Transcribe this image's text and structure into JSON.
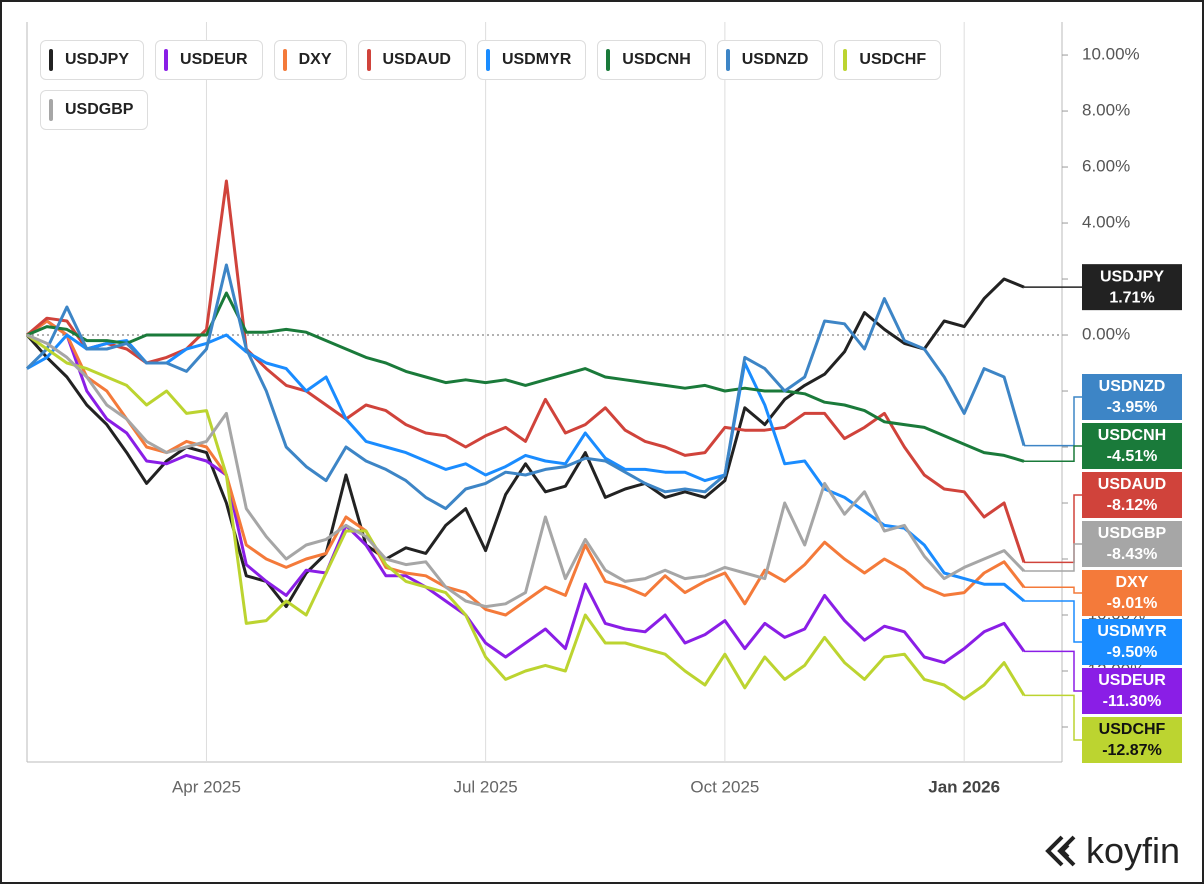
{
  "chart_data": {
    "type": "line",
    "categories": [
      null,
      null,
      null,
      null,
      null,
      null,
      null,
      null,
      null,
      "Apr 2025",
      null,
      null,
      null,
      null,
      null,
      null,
      null,
      null,
      null,
      null,
      null,
      null,
      null,
      "Jul 2025",
      null,
      null,
      null,
      null,
      null,
      null,
      null,
      null,
      null,
      null,
      null,
      "Oct 2025",
      null,
      null,
      null,
      null,
      null,
      null,
      null,
      null,
      null,
      null,
      null,
      "Jan 2026",
      null,
      null,
      null
    ],
    "ylim": [
      -15.25,
      11.18
    ],
    "yticks": [
      {
        "value": 10,
        "label": "10.00%"
      },
      {
        "value": 8,
        "label": "8.00%"
      },
      {
        "value": 6,
        "label": "6.00%"
      },
      {
        "value": 4,
        "label": "4.00%"
      },
      {
        "value": 2,
        "label": "2.00%"
      },
      {
        "value": 0,
        "label": "0.00%"
      },
      {
        "value": -2,
        "label": "-2.00%"
      },
      {
        "value": -4,
        "label": "-4.00%"
      },
      {
        "value": -6,
        "label": "-6.00%"
      },
      {
        "value": -8,
        "label": "-8.00%"
      },
      {
        "value": -10,
        "label": "-10.00%"
      },
      {
        "value": -12,
        "label": "-12.00%"
      },
      {
        "value": -14,
        "label": "-14.00%"
      }
    ],
    "zero_line": true,
    "series": [
      {
        "name": "USDJPY",
        "color": "#222222",
        "end_label": "1.71%",
        "values": [
          0,
          -0.8,
          -1.5,
          -2.5,
          -3.2,
          -4.2,
          -5.3,
          -4.5,
          -4.0,
          -4.2,
          -6.0,
          -8.6,
          -8.8,
          -9.7,
          -8.5,
          -7.8,
          -5.0,
          -7.5,
          -8.0,
          -7.6,
          -7.8,
          -6.8,
          -6.2,
          -7.7,
          -5.7,
          -4.6,
          -5.6,
          -5.4,
          -4.2,
          -5.8,
          -5.5,
          -5.3,
          -5.8,
          -5.6,
          -5.8,
          -5.2,
          -2.6,
          -3.2,
          -2.3,
          -1.8,
          -1.4,
          -0.6,
          0.8,
          0.2,
          -0.3,
          -0.5,
          0.5,
          0.3,
          1.3,
          2.0,
          1.71
        ]
      },
      {
        "name": "USDEUR",
        "color": "#8a1ee6",
        "end_label": "-11.30%",
        "values": [
          0,
          0.5,
          0,
          -2.0,
          -3.0,
          -3.5,
          -4.5,
          -4.6,
          -4.3,
          -4.5,
          -5.0,
          -8.2,
          -8.8,
          -9.3,
          -8.4,
          -8.5,
          -6.8,
          -7.5,
          -8.6,
          -8.6,
          -9.0,
          -9.5,
          -10.0,
          -11.0,
          -11.5,
          -11.0,
          -10.5,
          -11.2,
          -8.9,
          -10.3,
          -10.5,
          -10.6,
          -10.0,
          -11.0,
          -10.7,
          -10.2,
          -11.2,
          -10.3,
          -10.8,
          -10.5,
          -9.3,
          -10.2,
          -10.9,
          -10.4,
          -10.6,
          -11.5,
          -11.7,
          -11.2,
          -10.6,
          -10.3,
          -11.3
        ]
      },
      {
        "name": "DXY",
        "color": "#f47a3a",
        "end_label": "-9.01%",
        "values": [
          0,
          0.5,
          0,
          -1.5,
          -2.0,
          -3.0,
          -4.0,
          -4.2,
          -3.8,
          -4.0,
          -5.0,
          -7.5,
          -8.0,
          -8.3,
          -8.0,
          -7.8,
          -6.5,
          -7.0,
          -8.3,
          -8.5,
          -8.6,
          -9.0,
          -9.2,
          -9.8,
          -10.0,
          -9.5,
          -9.0,
          -9.3,
          -7.5,
          -8.8,
          -9.0,
          -9.3,
          -8.6,
          -9.2,
          -8.8,
          -8.5,
          -9.6,
          -8.4,
          -8.8,
          -8.2,
          -7.4,
          -8.0,
          -8.5,
          -8.0,
          -8.4,
          -9.0,
          -9.3,
          -9.2,
          -8.5,
          -8.1,
          -9.01
        ]
      },
      {
        "name": "USDAUD",
        "color": "#d0433b",
        "end_label": "-8.12%",
        "values": [
          0,
          0.6,
          0.5,
          -0.5,
          -0.3,
          -0.5,
          -1.0,
          -0.8,
          -0.5,
          0.2,
          5.5,
          -0.5,
          -1.2,
          -1.8,
          -2.0,
          -2.5,
          -3.0,
          -2.5,
          -2.7,
          -3.2,
          -3.5,
          -3.6,
          -4.0,
          -3.6,
          -3.3,
          -3.8,
          -2.3,
          -3.5,
          -3.2,
          -2.6,
          -3.4,
          -3.8,
          -4.0,
          -4.3,
          -4.2,
          -3.3,
          -3.4,
          -3.4,
          -3.3,
          -2.8,
          -2.8,
          -3.7,
          -3.3,
          -2.8,
          -4.0,
          -5.0,
          -5.5,
          -5.6,
          -6.5,
          -6.0,
          -8.12
        ]
      },
      {
        "name": "USDMYR",
        "color": "#1a8cff",
        "end_label": "-9.50%",
        "values": [
          -1.2,
          -0.8,
          0,
          -0.5,
          -0.3,
          -0.2,
          -1.0,
          -1.0,
          -0.5,
          -0.3,
          0,
          -0.6,
          -1.0,
          -1.2,
          -2.0,
          -1.5,
          -3.0,
          -3.8,
          -4.0,
          -4.2,
          -4.5,
          -4.8,
          -4.6,
          -5.0,
          -4.7,
          -4.3,
          -4.5,
          -4.6,
          -3.5,
          -4.4,
          -4.8,
          -4.8,
          -4.9,
          -4.9,
          -5.2,
          -5.0,
          -1.0,
          -2.5,
          -4.6,
          -4.5,
          -5.5,
          -5.8,
          -6.3,
          -6.8,
          -6.9,
          -7.5,
          -8.5,
          -8.7,
          -8.9,
          -8.9,
          -9.5
        ]
      },
      {
        "name": "USDCNH",
        "color": "#1a7a3a",
        "end_label": "-4.51%",
        "values": [
          0,
          0.3,
          0.2,
          -0.2,
          -0.2,
          -0.3,
          0,
          0,
          0,
          0,
          1.5,
          0.1,
          0.1,
          0.2,
          0.1,
          -0.2,
          -0.5,
          -0.8,
          -1.0,
          -1.3,
          -1.5,
          -1.7,
          -1.6,
          -1.7,
          -1.6,
          -1.8,
          -1.6,
          -1.4,
          -1.2,
          -1.5,
          -1.6,
          -1.7,
          -1.8,
          -1.9,
          -1.8,
          -2.0,
          -1.9,
          -2.0,
          -2.0,
          -2.1,
          -2.4,
          -2.5,
          -2.7,
          -3.1,
          -3.2,
          -3.3,
          -3.6,
          -3.9,
          -4.2,
          -4.3,
          -4.51
        ]
      },
      {
        "name": "USDNZD",
        "color": "#3d85c6",
        "end_label": "-3.95%",
        "values": [
          -1.2,
          -0.5,
          1.0,
          -0.5,
          -0.5,
          -0.3,
          -1.0,
          -1.0,
          -1.3,
          -0.5,
          2.5,
          -0.5,
          -2.0,
          -4.0,
          -4.7,
          -5.2,
          -4.0,
          -4.5,
          -4.8,
          -5.2,
          -5.8,
          -6.2,
          -5.5,
          -5.3,
          -4.9,
          -5.0,
          -4.8,
          -4.7,
          -4.4,
          -4.5,
          -4.9,
          -5.3,
          -5.6,
          -5.5,
          -5.6,
          -5.0,
          -0.8,
          -1.2,
          -2.0,
          -1.5,
          0.5,
          0.4,
          -0.5,
          1.3,
          -0.2,
          -0.5,
          -1.5,
          -2.8,
          -1.2,
          -1.5,
          -3.95
        ]
      },
      {
        "name": "USDCHF",
        "color": "#bcd430",
        "end_label": "-12.87%",
        "values": [
          0,
          -0.5,
          -1.0,
          -1.2,
          -1.5,
          -1.8,
          -2.5,
          -2.0,
          -2.8,
          -2.7,
          -5.0,
          -10.3,
          -10.2,
          -9.5,
          -10.0,
          -8.5,
          -7.0,
          -7.0,
          -8.2,
          -8.8,
          -9.0,
          -9.2,
          -10.0,
          -11.5,
          -12.3,
          -12.0,
          -11.8,
          -12.0,
          -10.0,
          -11.0,
          -11.0,
          -11.2,
          -11.4,
          -12.0,
          -12.5,
          -11.4,
          -12.6,
          -11.5,
          -12.3,
          -11.8,
          -10.8,
          -11.7,
          -12.3,
          -11.5,
          -11.4,
          -12.3,
          -12.5,
          -13.0,
          -12.5,
          -11.7,
          -12.87
        ]
      },
      {
        "name": "USDGBP",
        "color": "#a6a6a6",
        "end_label": "-8.43%",
        "values": [
          0,
          -0.3,
          -0.8,
          -1.5,
          -2.5,
          -3.0,
          -3.8,
          -4.2,
          -4.0,
          -3.8,
          -2.8,
          -6.2,
          -7.2,
          -8.0,
          -7.5,
          -7.3,
          -6.8,
          -7.2,
          -8.0,
          -8.2,
          -8.1,
          -9.0,
          -9.5,
          -9.7,
          -9.6,
          -9.2,
          -6.5,
          -8.7,
          -7.3,
          -8.4,
          -8.8,
          -8.7,
          -8.4,
          -8.7,
          -8.6,
          -8.3,
          -8.5,
          -8.7,
          -6.0,
          -7.5,
          -5.3,
          -6.4,
          -5.6,
          -7.0,
          -6.8,
          -7.9,
          -8.7,
          -8.3,
          -8.0,
          -7.7,
          -8.43
        ]
      }
    ],
    "brand": "koyfin"
  }
}
